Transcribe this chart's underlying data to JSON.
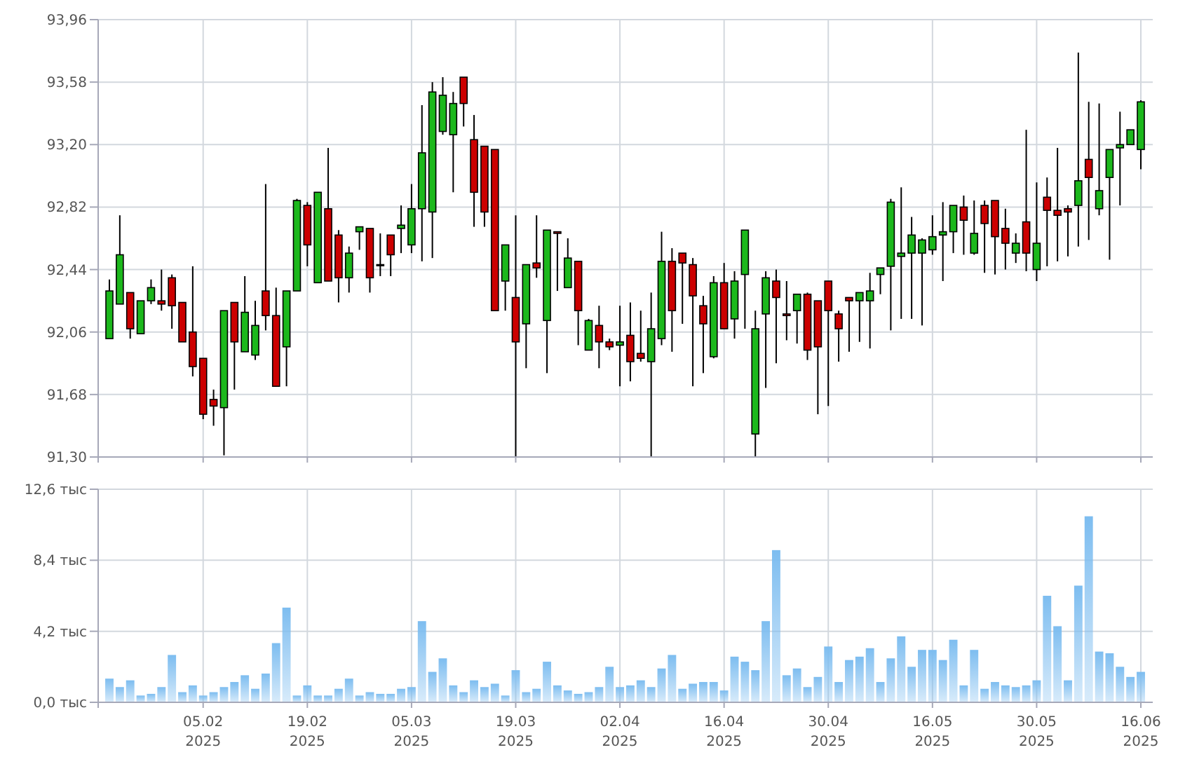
{
  "chart_data": [
    {
      "type": "candlestick",
      "tick_labels": "y",
      "grid": true,
      "categories": [
        null,
        null,
        null,
        null,
        null,
        null,
        null,
        null,
        null,
        null,
        null,
        null,
        null,
        null,
        null,
        null,
        null,
        null,
        null,
        null,
        null,
        null,
        null,
        null,
        null,
        null,
        null,
        null,
        null,
        null,
        null,
        null,
        null,
        null,
        null,
        null,
        null,
        null,
        null,
        null,
        null,
        null,
        null,
        null,
        null,
        null,
        null,
        null,
        null,
        null,
        null,
        null,
        null,
        null,
        null,
        null,
        null,
        null,
        null,
        null,
        null,
        null,
        null,
        null,
        null,
        null,
        null,
        null,
        null,
        null,
        null,
        null,
        null,
        null,
        null,
        null,
        null,
        null,
        null,
        null,
        null,
        null,
        null,
        null,
        null,
        null,
        null,
        null,
        null,
        null,
        null,
        null,
        null,
        null,
        null,
        null,
        null,
        null,
        null,
        null
      ],
      "ylim": [
        91.3,
        93.96
      ],
      "yticks": [
        {
          "value": 91.3,
          "label": "91,30"
        },
        {
          "value": 91.68,
          "label": "91,68"
        },
        {
          "value": 92.06,
          "label": "92,06"
        },
        {
          "value": 92.44,
          "label": "92,44"
        },
        {
          "value": 92.82,
          "label": "92,82"
        },
        {
          "value": 93.2,
          "label": "93,20"
        },
        {
          "value": 93.58,
          "label": "93,58"
        },
        {
          "value": 93.96,
          "label": "93,96"
        }
      ],
      "colors": [
        "#1cb81c",
        "#1cb81c",
        "#cc0000",
        "#1cb81c",
        "#1cb81c",
        "#cc0000",
        "#cc0000",
        "#cc0000",
        "#cc0000",
        "#cc0000",
        "#cc0000",
        "#1cb81c",
        "#cc0000",
        "#1cb81c",
        "#1cb81c",
        "#cc0000",
        "#cc0000",
        "#1cb81c",
        "#1cb81c",
        "#cc0000",
        "#1cb81c",
        "#cc0000",
        "#cc0000",
        "#1cb81c",
        "#1cb81c",
        "#cc0000",
        "#1cb81c",
        "#cc0000",
        "#1cb81c",
        "#1cb81c",
        "#1cb81c",
        "#1cb81c",
        "#1cb81c",
        "#1cb81c",
        "#cc0000",
        "#cc0000",
        "#cc0000",
        "#cc0000",
        "#1cb81c",
        "#cc0000",
        "#1cb81c",
        "#cc0000",
        "#1cb81c",
        "#cc0000",
        "#1cb81c",
        "#cc0000",
        "#1cb81c",
        "#cc0000",
        "#cc0000",
        "#1cb81c",
        "#cc0000",
        "#cc0000",
        "#1cb81c",
        "#1cb81c",
        "#cc0000",
        "#cc0000",
        "#cc0000",
        "#cc0000",
        "#1cb81c",
        "#cc0000",
        "#1cb81c",
        "#1cb81c",
        "#1cb81c",
        "#1cb81c",
        "#cc0000",
        "#cc0000",
        "#1cb81c",
        "#cc0000",
        "#cc0000",
        "#cc0000",
        "#cc0000",
        "#cc0000",
        "#1cb81c",
        "#1cb81c",
        "#1cb81c",
        "#1cb81c",
        "#1cb81c",
        "#1cb81c",
        "#1cb81c",
        "#1cb81c",
        "#1cb81c",
        "#1cb81c",
        "#cc0000",
        "#1cb81c",
        "#cc0000",
        "#cc0000",
        "#cc0000",
        "#1cb81c",
        "#cc0000",
        "#1cb81c",
        "#cc0000",
        "#cc0000",
        "#cc0000",
        "#1cb81c",
        "#cc0000",
        "#1cb81c",
        "#1cb81c",
        "#1cb81c",
        "#1cb81c",
        "#1cb81c"
      ],
      "ohlc": [
        [
          92.02,
          92.38,
          92.02,
          92.31
        ],
        [
          92.23,
          92.77,
          92.23,
          92.53
        ],
        [
          92.3,
          92.3,
          92.02,
          92.08
        ],
        [
          92.05,
          92.25,
          92.05,
          92.25
        ],
        [
          92.25,
          92.38,
          92.23,
          92.33
        ],
        [
          92.25,
          92.44,
          92.19,
          92.23
        ],
        [
          92.39,
          92.41,
          92.08,
          92.22
        ],
        [
          92.24,
          92.24,
          92.0,
          92.0
        ],
        [
          92.06,
          92.46,
          91.79,
          91.85
        ],
        [
          91.9,
          91.9,
          91.53,
          91.56
        ],
        [
          91.65,
          91.71,
          91.49,
          91.61
        ],
        [
          91.6,
          92.19,
          91.31,
          92.19
        ],
        [
          92.24,
          92.24,
          91.71,
          92.0
        ],
        [
          91.94,
          92.4,
          91.94,
          92.18
        ],
        [
          91.92,
          92.25,
          91.89,
          92.1
        ],
        [
          92.31,
          92.96,
          92.07,
          92.16
        ],
        [
          92.16,
          92.33,
          91.73,
          91.73
        ],
        [
          91.97,
          92.31,
          91.73,
          92.31
        ],
        [
          92.31,
          92.87,
          92.31,
          92.86
        ],
        [
          92.83,
          92.85,
          92.46,
          92.59
        ],
        [
          92.36,
          92.91,
          92.36,
          92.91
        ],
        [
          92.81,
          93.18,
          92.37,
          92.37
        ],
        [
          92.65,
          92.68,
          92.24,
          92.39
        ],
        [
          92.39,
          92.58,
          92.3,
          92.54
        ],
        [
          92.67,
          92.7,
          92.56,
          92.7
        ],
        [
          92.69,
          92.69,
          92.3,
          92.39
        ],
        [
          92.47,
          92.66,
          92.4,
          92.47
        ],
        [
          92.65,
          92.65,
          92.4,
          92.53
        ],
        [
          92.69,
          92.83,
          92.54,
          92.71
        ],
        [
          92.59,
          92.96,
          92.54,
          92.81
        ],
        [
          92.81,
          93.44,
          92.49,
          93.15
        ],
        [
          92.79,
          93.58,
          92.51,
          93.52
        ],
        [
          93.28,
          93.61,
          93.26,
          93.5
        ],
        [
          93.26,
          93.52,
          92.91,
          93.45
        ],
        [
          93.61,
          93.61,
          93.31,
          93.45
        ],
        [
          93.23,
          93.38,
          92.7,
          92.91
        ],
        [
          93.19,
          93.19,
          92.7,
          92.79
        ],
        [
          93.17,
          93.17,
          92.19,
          92.19
        ],
        [
          92.37,
          92.59,
          92.19,
          92.59
        ],
        [
          92.27,
          92.77,
          91.3,
          92.0
        ],
        [
          92.11,
          92.47,
          91.84,
          92.47
        ],
        [
          92.48,
          92.77,
          92.39,
          92.45
        ],
        [
          92.13,
          92.68,
          91.81,
          92.68
        ],
        [
          92.67,
          92.67,
          92.31,
          92.66
        ],
        [
          92.33,
          92.63,
          92.33,
          92.51
        ],
        [
          92.49,
          92.49,
          91.98,
          92.19
        ],
        [
          91.95,
          92.14,
          91.95,
          92.13
        ],
        [
          92.1,
          92.22,
          91.84,
          92.0
        ],
        [
          92.0,
          92.02,
          91.95,
          91.97
        ],
        [
          91.98,
          92.22,
          91.73,
          92.0
        ],
        [
          92.04,
          92.24,
          91.76,
          91.88
        ],
        [
          91.93,
          92.19,
          91.88,
          91.9
        ],
        [
          91.88,
          92.3,
          91.3,
          92.08
        ],
        [
          92.02,
          92.67,
          91.98,
          92.49
        ],
        [
          92.49,
          92.57,
          91.94,
          92.19
        ],
        [
          92.54,
          92.54,
          92.11,
          92.48
        ],
        [
          92.47,
          92.51,
          91.73,
          92.28
        ],
        [
          92.22,
          92.28,
          91.81,
          92.11
        ],
        [
          91.91,
          92.4,
          91.9,
          92.36
        ],
        [
          92.36,
          92.48,
          92.08,
          92.08
        ],
        [
          92.14,
          92.43,
          92.02,
          92.37
        ],
        [
          92.41,
          92.68,
          92.08,
          92.68
        ],
        [
          91.44,
          92.19,
          91.3,
          92.08
        ],
        [
          92.17,
          92.43,
          91.72,
          92.39
        ],
        [
          92.37,
          92.44,
          91.87,
          92.27
        ],
        [
          92.17,
          92.37,
          92.01,
          92.16
        ],
        [
          92.19,
          92.29,
          91.99,
          92.29
        ],
        [
          92.29,
          92.3,
          91.89,
          91.95
        ],
        [
          92.25,
          92.25,
          91.56,
          91.97
        ],
        [
          92.37,
          92.37,
          91.61,
          92.19
        ],
        [
          92.17,
          92.19,
          91.88,
          92.08
        ],
        [
          92.27,
          92.27,
          91.94,
          92.25
        ],
        [
          92.25,
          92.3,
          92.0,
          92.3
        ],
        [
          92.25,
          92.42,
          91.96,
          92.31
        ],
        [
          92.41,
          92.45,
          92.29,
          92.45
        ],
        [
          92.46,
          92.87,
          92.07,
          92.85
        ],
        [
          92.52,
          92.94,
          92.14,
          92.54
        ],
        [
          92.54,
          92.76,
          92.14,
          92.65
        ],
        [
          92.54,
          92.63,
          92.1,
          92.62
        ],
        [
          92.56,
          92.77,
          92.53,
          92.64
        ],
        [
          92.65,
          92.85,
          92.37,
          92.67
        ],
        [
          92.67,
          92.83,
          92.54,
          92.83
        ],
        [
          92.82,
          92.89,
          92.53,
          92.74
        ],
        [
          92.54,
          92.86,
          92.53,
          92.66
        ],
        [
          92.83,
          92.86,
          92.42,
          92.72
        ],
        [
          92.86,
          92.86,
          92.41,
          92.64
        ],
        [
          92.69,
          92.81,
          92.44,
          92.6
        ],
        [
          92.54,
          92.66,
          92.48,
          92.6
        ],
        [
          92.73,
          93.29,
          92.43,
          92.54
        ],
        [
          92.44,
          92.97,
          92.37,
          92.6
        ],
        [
          92.88,
          93.0,
          92.46,
          92.8
        ],
        [
          92.8,
          93.18,
          92.49,
          92.77
        ],
        [
          92.81,
          92.83,
          92.52,
          92.79
        ],
        [
          92.83,
          93.76,
          92.58,
          92.98
        ],
        [
          93.11,
          93.46,
          92.62,
          93.0
        ],
        [
          92.81,
          93.45,
          92.77,
          92.92
        ],
        [
          93.0,
          93.17,
          92.5,
          93.17
        ],
        [
          93.18,
          93.4,
          92.83,
          93.2
        ],
        [
          93.2,
          93.29,
          93.2,
          93.29
        ],
        [
          93.17,
          93.47,
          93.05,
          93.46
        ]
      ]
    },
    {
      "type": "bar",
      "grid": true,
      "color": "#7dbdf0",
      "categories": [
        null,
        null,
        null,
        null,
        null,
        null,
        null,
        null,
        null,
        "05.02 2025",
        null,
        null,
        null,
        null,
        null,
        null,
        null,
        null,
        null,
        "19.02 2025",
        null,
        null,
        null,
        null,
        null,
        null,
        null,
        null,
        null,
        "05.03 2025",
        null,
        null,
        null,
        null,
        null,
        null,
        null,
        null,
        null,
        "19.03 2025",
        null,
        null,
        null,
        null,
        null,
        null,
        null,
        null,
        null,
        "02.04 2025",
        null,
        null,
        null,
        null,
        null,
        null,
        null,
        null,
        null,
        "16.04 2025",
        null,
        null,
        null,
        null,
        null,
        null,
        null,
        null,
        null,
        "30.04 2025",
        null,
        null,
        null,
        null,
        null,
        null,
        null,
        null,
        null,
        "16.05 2025",
        null,
        null,
        null,
        null,
        null,
        null,
        null,
        null,
        null,
        "30.05 2025",
        null,
        null,
        null,
        null,
        null,
        null,
        null,
        null,
        null,
        "16.06 2025"
      ],
      "ylim": [
        0,
        12.6
      ],
      "yticks": [
        {
          "value": 0,
          "label": "0,0 тыс"
        },
        {
          "value": 4.2,
          "label": "4,2 тыс"
        },
        {
          "value": 8.4,
          "label": "8,4 тыс"
        },
        {
          "value": 12.6,
          "label": "12,6 тыс"
        }
      ],
      "values": [
        1.4,
        0.9,
        1.3,
        0.4,
        0.5,
        0.9,
        2.8,
        0.6,
        1.0,
        0.4,
        0.6,
        0.9,
        1.2,
        1.6,
        0.8,
        1.7,
        3.5,
        5.6,
        0.4,
        1.0,
        0.4,
        0.4,
        0.8,
        1.4,
        0.4,
        0.6,
        0.5,
        0.5,
        0.8,
        0.9,
        4.8,
        1.8,
        2.6,
        1.0,
        0.6,
        1.3,
        0.9,
        1.1,
        0.4,
        1.9,
        0.6,
        0.8,
        2.4,
        1.0,
        0.7,
        0.5,
        0.6,
        0.9,
        2.1,
        0.9,
        1.0,
        1.3,
        0.9,
        2.0,
        2.8,
        0.8,
        1.1,
        1.2,
        1.2,
        0.7,
        2.7,
        2.4,
        1.9,
        4.8,
        9.0,
        1.6,
        2.0,
        0.9,
        1.5,
        3.3,
        1.2,
        2.5,
        2.7,
        3.2,
        1.2,
        2.6,
        3.9,
        2.1,
        3.1,
        3.1,
        2.5,
        3.7,
        1.0,
        3.1,
        0.8,
        1.2,
        1.0,
        0.9,
        1.0,
        1.3,
        6.3,
        4.5,
        1.3,
        6.9,
        11.0,
        3.0,
        2.9,
        2.1,
        1.5,
        1.8
      ]
    }
  ]
}
